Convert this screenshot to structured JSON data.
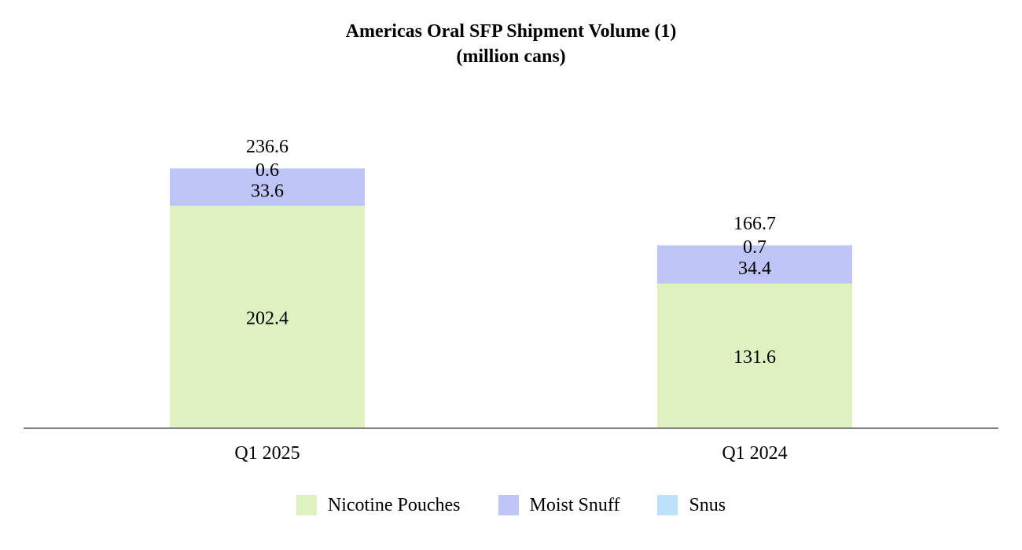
{
  "chart_data": {
    "type": "bar",
    "stacked": true,
    "title": "Americas Oral SFP Shipment Volume (1)",
    "subtitle": "(million cans)",
    "categories": [
      "Q1 2025",
      "Q1 2024"
    ],
    "series": [
      {
        "name": "Nicotine Pouches",
        "color": "#ddf2c0",
        "values": [
          202.4,
          131.6
        ]
      },
      {
        "name": "Moist Snuff",
        "color": "#bfc4f6",
        "values": [
          33.6,
          34.4
        ]
      },
      {
        "name": "Snus",
        "color": "#bde1fa",
        "values": [
          0.6,
          0.7
        ]
      }
    ],
    "totals": [
      236.6,
      166.7
    ],
    "value_labels": {
      "Nicotine Pouches": [
        "202.4",
        "131.6"
      ],
      "Moist Snuff": [
        "33.6",
        "34.4"
      ],
      "Snus": [
        "0.6",
        "0.7"
      ],
      "totals": [
        "236.6",
        "166.7"
      ]
    },
    "ylim": [
      0,
      236.6
    ],
    "xlabel": "",
    "ylabel": "",
    "grid": false,
    "legend_position": "bottom"
  }
}
